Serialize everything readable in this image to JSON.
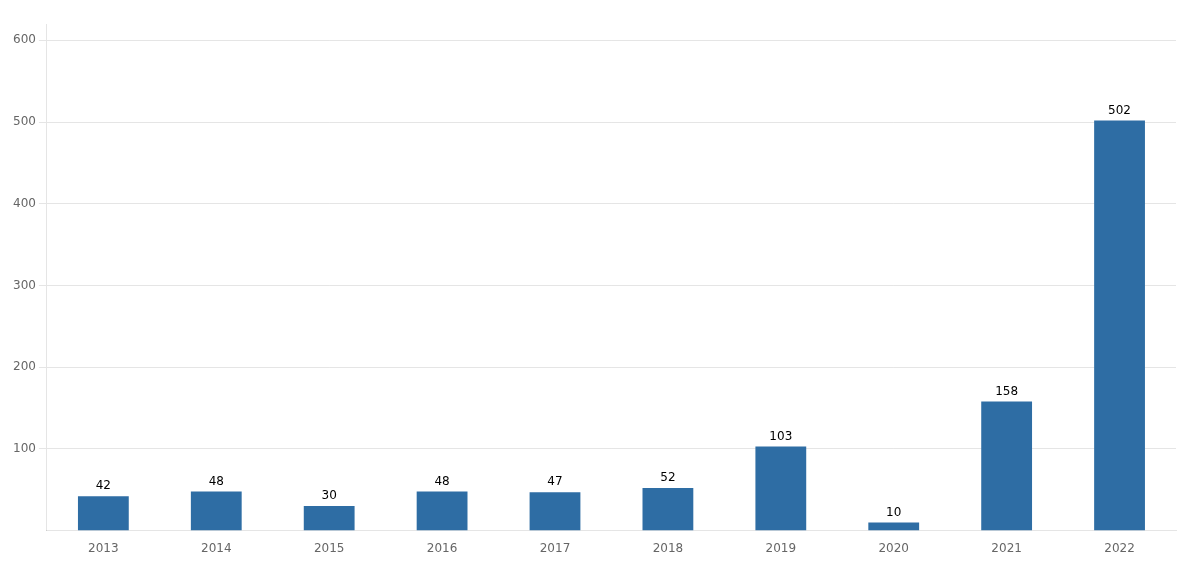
{
  "chart_data": {
    "type": "bar",
    "categories": [
      "2013",
      "2014",
      "2015",
      "2016",
      "2017",
      "2018",
      "2019",
      "2020",
      "2021",
      "2022"
    ],
    "values": [
      42,
      48,
      30,
      48,
      47,
      52,
      103,
      10,
      158,
      502
    ],
    "color": "#2E6DA4",
    "ylim": [
      0,
      620
    ],
    "yticks": [
      100,
      200,
      300,
      400,
      500,
      600
    ],
    "grid": true,
    "data_labels": true
  }
}
